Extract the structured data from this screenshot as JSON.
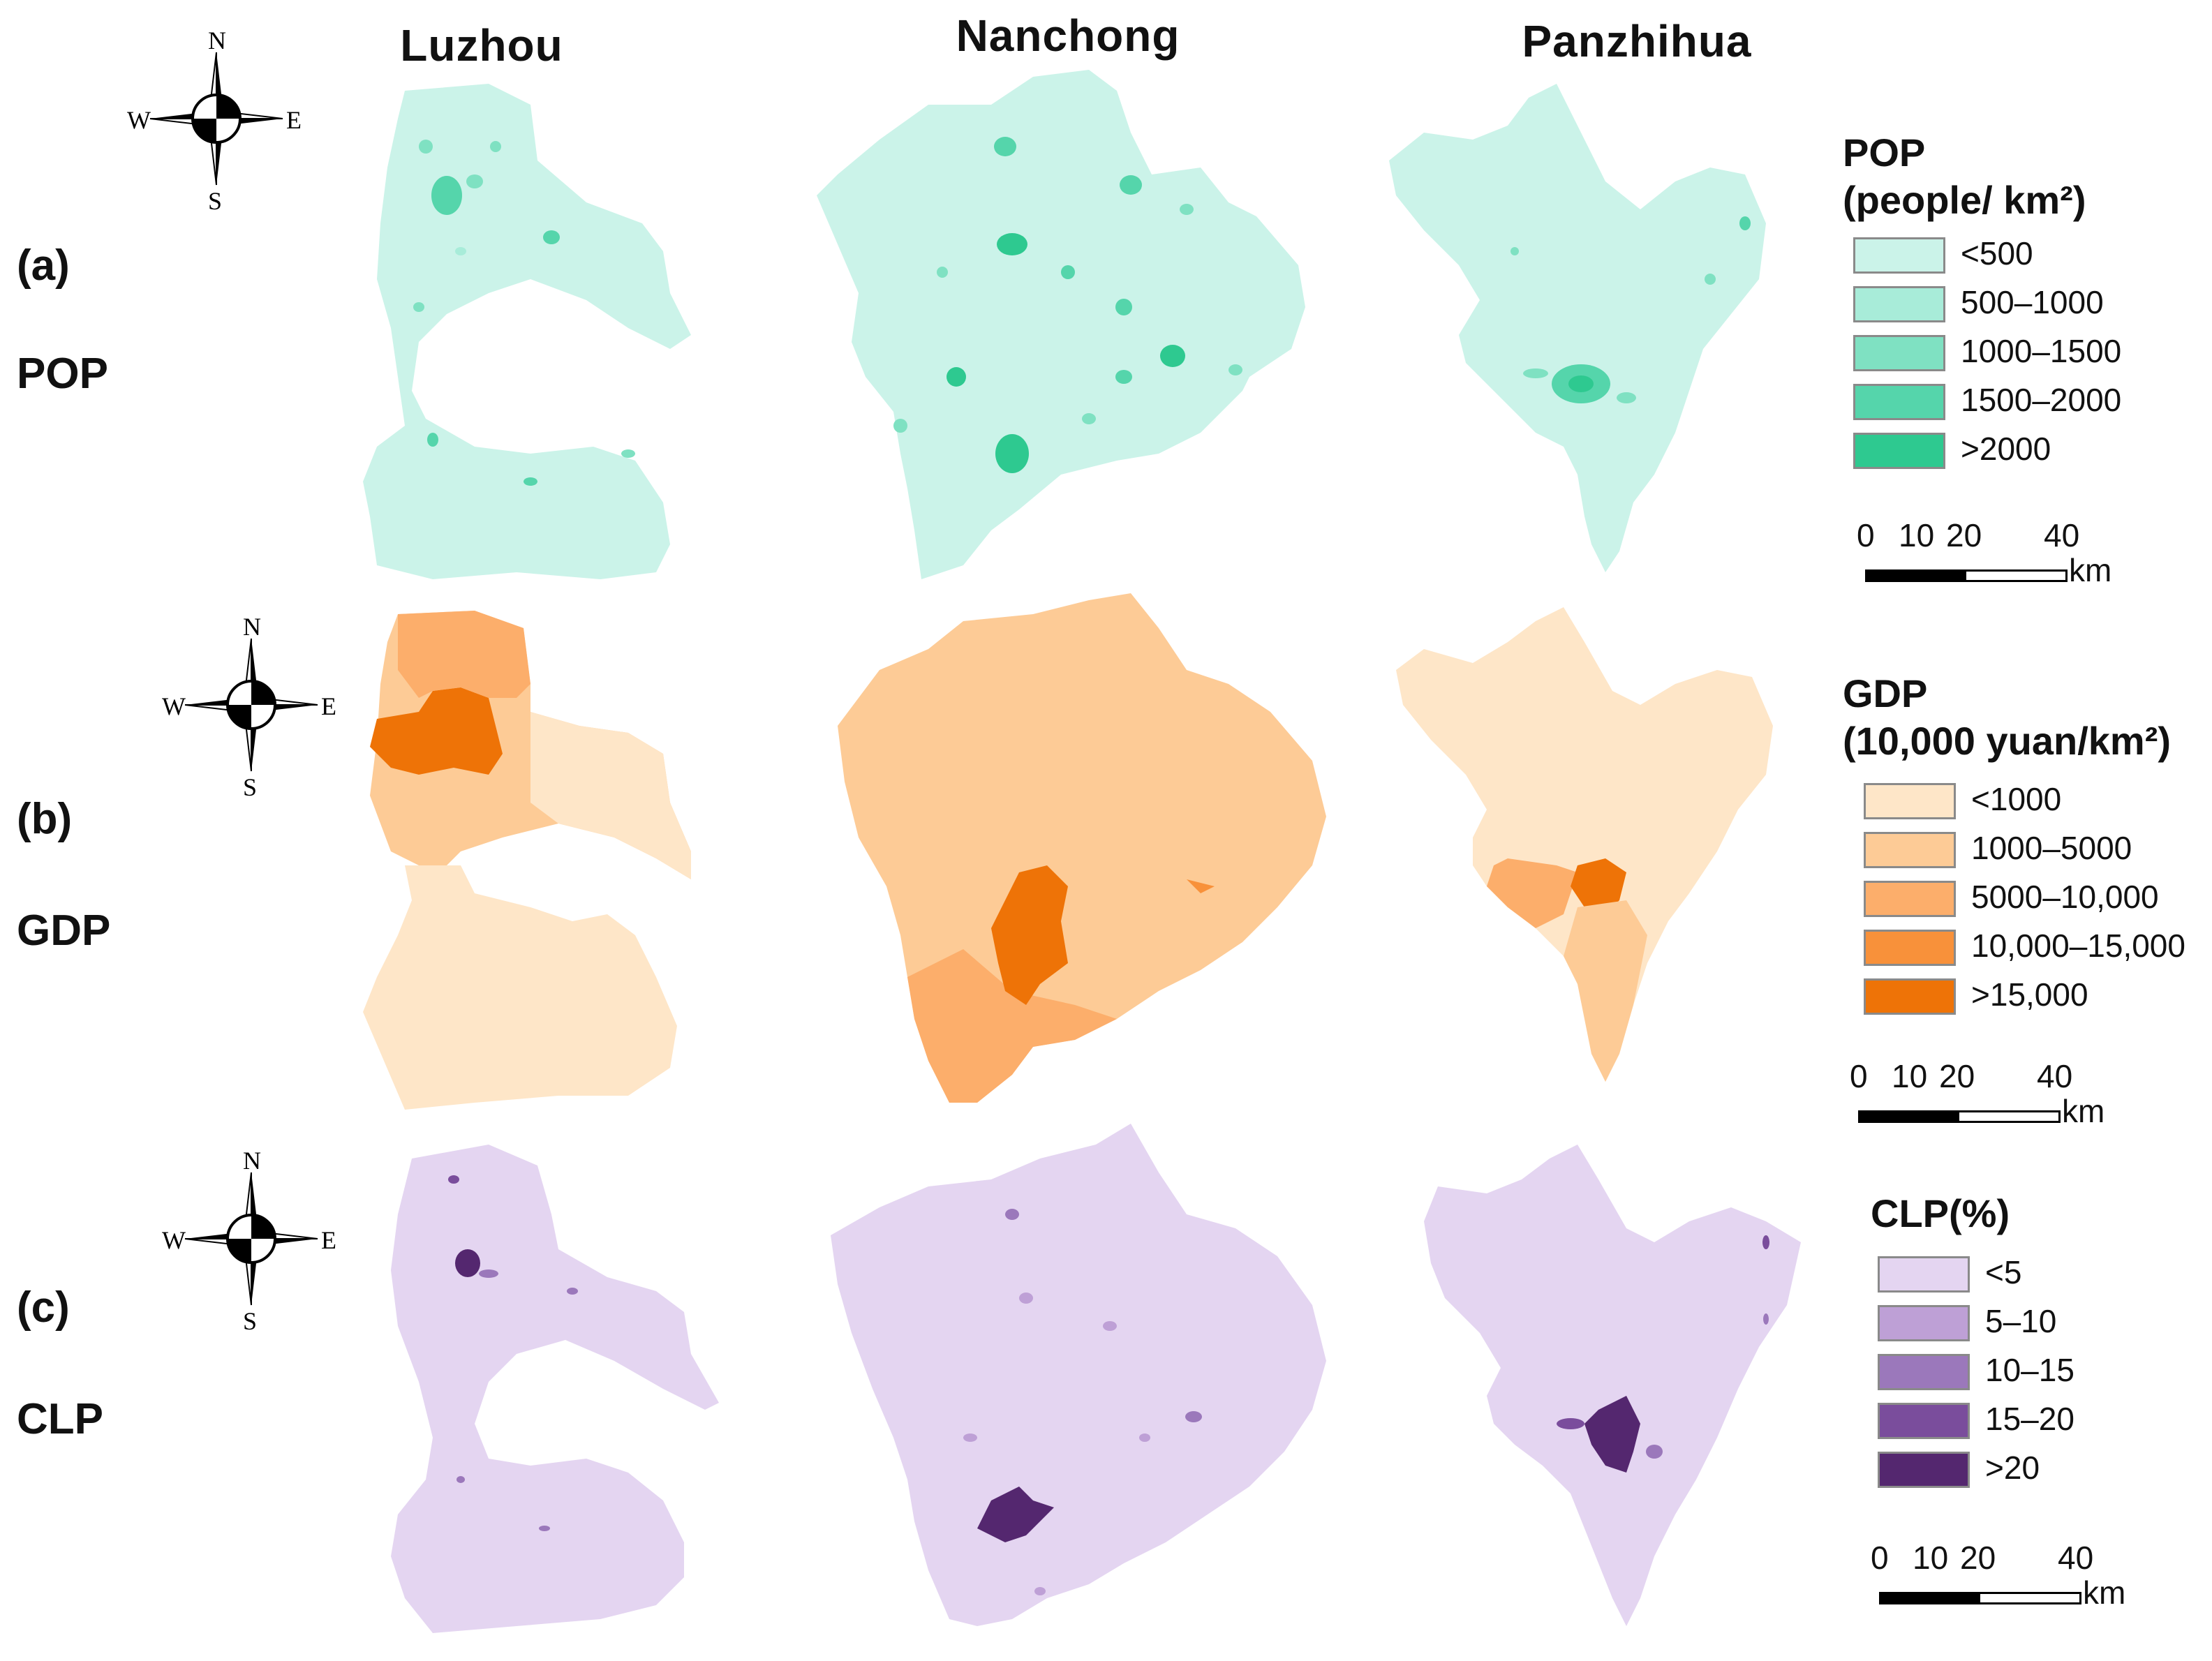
{
  "columns": [
    "Luzhou",
    "Nanchong",
    "Panzhihua"
  ],
  "rows": [
    {
      "letter": "(a)",
      "name": "POP"
    },
    {
      "letter": "(b)",
      "name": "GDP"
    },
    {
      "letter": "(c)",
      "name": "CLP"
    }
  ],
  "compass": {
    "n": "N",
    "s": "S",
    "e": "E",
    "w": "W"
  },
  "legends": [
    {
      "title_line1": "POP",
      "title_line2": "(people/ km²)",
      "items": [
        {
          "label": "<500",
          "color": "#cbf3e9"
        },
        {
          "label": "500–1000",
          "color": "#a8ecd9"
        },
        {
          "label": "1000–1500",
          "color": "#7fe1c2"
        },
        {
          "label": "1500–2000",
          "color": "#55d5ab"
        },
        {
          "label": ">2000",
          "color": "#2ec990"
        }
      ]
    },
    {
      "title_line1": "GDP",
      "title_line2": "(10,000 yuan/km²)",
      "items": [
        {
          "label": "<1000",
          "color": "#fee6c8"
        },
        {
          "label": "1000–5000",
          "color": "#fdcb96"
        },
        {
          "label": "5000–10,000",
          "color": "#fcae6b"
        },
        {
          "label": "10,000–15,000",
          "color": "#f8913a"
        },
        {
          "label": ">15,000",
          "color": "#ee7307"
        }
      ]
    },
    {
      "title_line1": "CLP(%)",
      "title_line2": "",
      "items": [
        {
          "label": "<5",
          "color": "#e4d5f1"
        },
        {
          "label": "5–10",
          "color": "#bea0d6"
        },
        {
          "label": "10–15",
          "color": "#9b78bb"
        },
        {
          "label": "15–20",
          "color": "#7a4d9c"
        },
        {
          "label": ">20",
          "color": "#54276f"
        }
      ]
    }
  ],
  "scalebar": {
    "t0": "0",
    "t10": "10",
    "t20": "20",
    "t40": "40",
    "unit": "km"
  }
}
